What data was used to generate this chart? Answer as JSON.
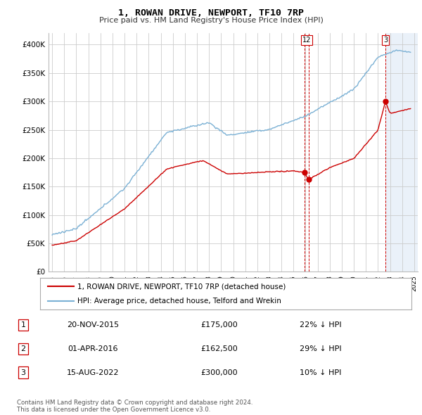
{
  "title": "1, ROWAN DRIVE, NEWPORT, TF10 7RP",
  "subtitle": "Price paid vs. HM Land Registry's House Price Index (HPI)",
  "hpi_color": "#7ab0d4",
  "price_color": "#cc0000",
  "vline_color": "#cc0000",
  "background_color": "#ffffff",
  "grid_color": "#cccccc",
  "shade_color": "#dce8f5",
  "ylim": [
    0,
    420000
  ],
  "yticks": [
    0,
    50000,
    100000,
    150000,
    200000,
    250000,
    300000,
    350000,
    400000
  ],
  "ytick_labels": [
    "£0",
    "£50K",
    "£100K",
    "£150K",
    "£200K",
    "£250K",
    "£300K",
    "£350K",
    "£400K"
  ],
  "transactions": [
    {
      "num": 1,
      "date_label": "20-NOV-2015",
      "date_x": 2015.89,
      "price": 175000,
      "pct": "22%",
      "direction": "↓"
    },
    {
      "num": 2,
      "date_label": "01-APR-2016",
      "date_x": 2016.25,
      "price": 162500,
      "pct": "29%",
      "direction": "↓"
    },
    {
      "num": 3,
      "date_label": "15-AUG-2022",
      "date_x": 2022.62,
      "price": 300000,
      "pct": "10%",
      "direction": "↓"
    }
  ],
  "legend_label_price": "1, ROWAN DRIVE, NEWPORT, TF10 7RP (detached house)",
  "legend_label_hpi": "HPI: Average price, detached house, Telford and Wrekin",
  "footnote": "Contains HM Land Registry data © Crown copyright and database right 2024.\nThis data is licensed under the Open Government Licence v3.0.",
  "xlim_start": 1994.7,
  "xlim_end": 2025.3,
  "shade_start": 2022.62,
  "shade_end": 2025.3
}
